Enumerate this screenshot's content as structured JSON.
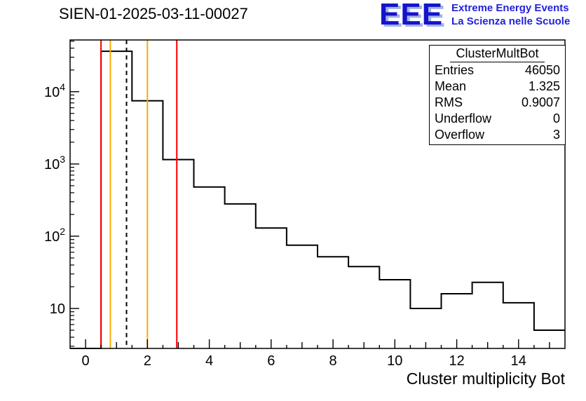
{
  "header": {
    "title": "SIEN-01-2025-03-11-00027"
  },
  "logo": {
    "eee": "EEE",
    "line1": "Extreme Energy Events",
    "line2": "La Scienza nelle Scuole"
  },
  "stats": {
    "title": "ClusterMultBot",
    "rows": [
      {
        "label": "Entries",
        "value": "46050"
      },
      {
        "label": "Mean",
        "value": "1.325"
      },
      {
        "label": "RMS",
        "value": "0.9007"
      },
      {
        "label": "Underflow",
        "value": "0"
      },
      {
        "label": "Overflow",
        "value": "3"
      }
    ]
  },
  "chart_data": {
    "type": "bar",
    "subtype": "step-histogram",
    "title": "SIEN-01-2025-03-11-00027",
    "xlabel": "Cluster multiplicity Bot",
    "ylabel": "",
    "y_scale": "log",
    "x_range": [
      -0.5,
      15.5
    ],
    "y_range": [
      2.8,
      52000
    ],
    "bin_width": 1,
    "bin_centers": [
      1,
      2,
      3,
      4,
      5,
      6,
      7,
      8,
      9,
      10,
      11,
      12,
      13,
      14,
      15
    ],
    "values": [
      36300,
      7500,
      1150,
      480,
      280,
      130,
      75,
      52,
      38,
      25,
      10,
      16,
      23,
      12,
      5
    ],
    "x_tick_labels": [
      0,
      2,
      4,
      6,
      8,
      10,
      12,
      14
    ],
    "y_tick_decades": [
      1,
      2,
      3,
      4
    ],
    "line_color": "#000000",
    "marker_lines": [
      {
        "x": 0.5,
        "color": "#ff0000",
        "style": "solid"
      },
      {
        "x": 0.8,
        "color": "#ffaa00",
        "style": "solid"
      },
      {
        "x": 1.325,
        "color": "#000000",
        "style": "dashed"
      },
      {
        "x": 2.0,
        "color": "#ffaa00",
        "style": "solid"
      },
      {
        "x": 2.95,
        "color": "#ff0000",
        "style": "solid"
      }
    ],
    "legend": "none",
    "grid": false
  }
}
